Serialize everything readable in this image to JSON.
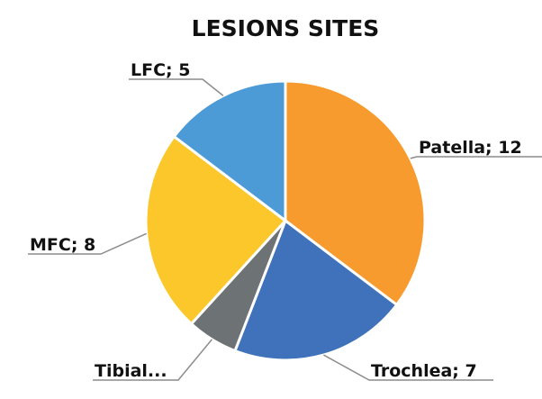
{
  "chart_data": {
    "type": "pie",
    "title": "LESIONS SITES",
    "values": [
      12,
      7,
      2,
      8,
      5
    ],
    "value_labels": [
      "Patella; 12",
      "Trochlea; 7",
      "Tibial...",
      "MFC; 8",
      "LFC; 5"
    ],
    "colors": [
      "#f79b2e",
      "#3f72ba",
      "#6d7275",
      "#fbc72a",
      "#4d9bd6"
    ]
  }
}
